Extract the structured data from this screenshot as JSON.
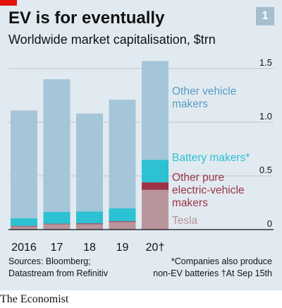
{
  "header": {
    "title": "EV is for eventually",
    "subtitle": "Worldwide market capitalisation, $trn",
    "chart_number": "1"
  },
  "footer": {
    "source_line1": "Sources: Bloomberg;",
    "source_line2": "Datastream from Refinitiv",
    "note_line1": "*Companies also produce",
    "note_line2": "non-EV batteries   †At Sep 15th",
    "brand": "The Economist"
  },
  "colors": {
    "background": "#e1eaf0",
    "other_vehicle_makers": "#a5c5d9",
    "battery_makers": "#2cc1d3",
    "other_pure_ev_makers": "#9c3346",
    "tesla": "#b8959b",
    "other_vehicle_label": "#5a9cc1",
    "gridline": "#b9c6cf",
    "zero_line": "#121212",
    "brand_accent": "#e3120b"
  },
  "chart_data": {
    "type": "bar",
    "stacked": true,
    "categories": [
      "2016",
      "17",
      "18",
      "19",
      "20†"
    ],
    "series": [
      {
        "name": "Tesla",
        "values": [
          0.03,
          0.05,
          0.05,
          0.07,
          0.37
        ]
      },
      {
        "name": "Other pure electric-vehicle makers",
        "values": [
          0.005,
          0.005,
          0.008,
          0.008,
          0.07
        ]
      },
      {
        "name": "Battery makers*",
        "values": [
          0.07,
          0.11,
          0.11,
          0.12,
          0.21
        ]
      },
      {
        "name": "Other vehicle makers",
        "values": [
          1.005,
          1.235,
          0.912,
          1.012,
          0.92
        ]
      }
    ],
    "ylim": [
      0,
      1.5
    ],
    "yticks": [
      "0",
      "0.5",
      "1.0",
      "1.5"
    ],
    "ytick_values": [
      0,
      0.5,
      1.0,
      1.5
    ],
    "grid": true,
    "legend": "direct labels at right",
    "legend_labels": [
      {
        "series": "Other vehicle makers",
        "lines": [
          "Other vehicle",
          "makers"
        ]
      },
      {
        "series": "Battery makers*",
        "lines": [
          "Battery makers*"
        ]
      },
      {
        "series": "Other pure electric-vehicle makers",
        "lines": [
          "Other pure",
          "electric-vehicle",
          "makers"
        ]
      },
      {
        "series": "Tesla",
        "lines": [
          "Tesla"
        ]
      }
    ]
  }
}
